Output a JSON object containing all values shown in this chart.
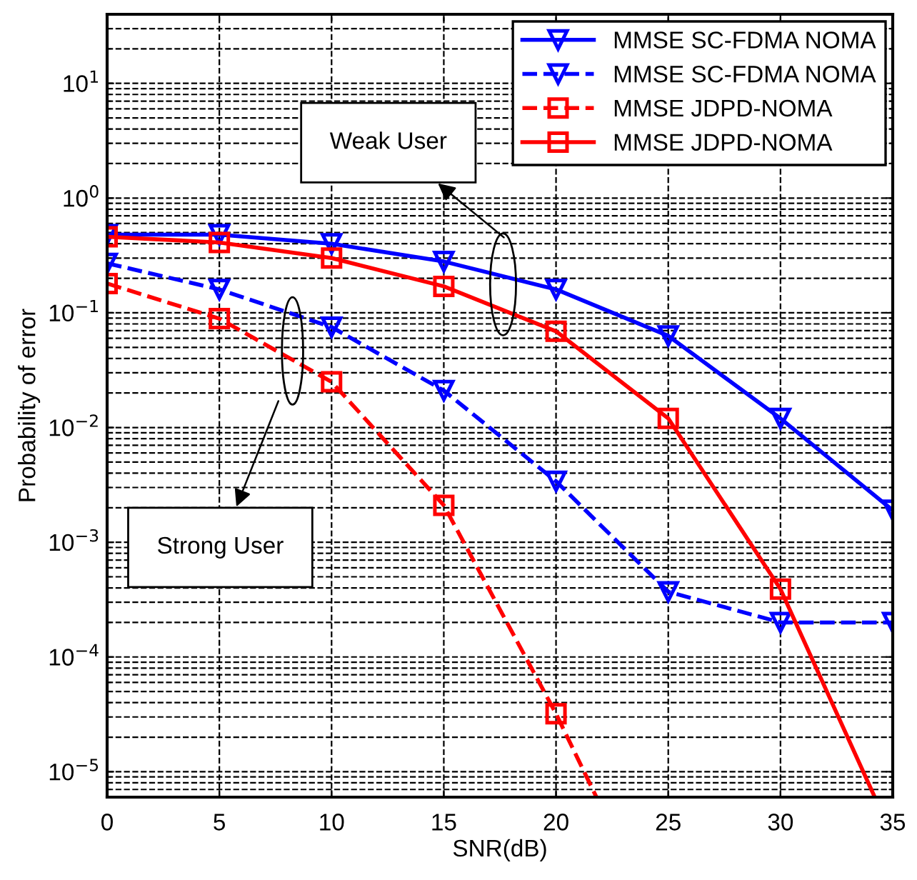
{
  "chart_data": {
    "type": "line",
    "xlabel": "SNR(dB)",
    "ylabel": "Probability of error",
    "log": "y",
    "grid": true,
    "legend": "top right",
    "xlim": [
      0,
      35
    ],
    "xticks": [
      0,
      5,
      10,
      15,
      20,
      25,
      30,
      35
    ],
    "ylim": [
      6e-06,
      40
    ],
    "yticks": [
      {
        "value": 1e-05,
        "label": "10$^{−5}$"
      },
      {
        "value": 0.0001,
        "label": "10$^{−4}$"
      },
      {
        "value": 0.001,
        "label": "10$^{−3}$"
      },
      {
        "value": 0.01,
        "label": "10$^{−2}$"
      },
      {
        "value": 0.1,
        "label": "10$^{−1}$"
      },
      {
        "value": 1,
        "label": "10$^{0}$"
      },
      {
        "value": 10,
        "label": "10$^{1}$"
      }
    ],
    "x": [
      0,
      5,
      10,
      15,
      20,
      25,
      30,
      35
    ],
    "series": [
      {
        "name": "MMSE SC-FDMA NOMA",
        "color": "#0000ff",
        "marker": "triangle",
        "line_style": "solid",
        "values": [
          0.48,
          0.48,
          0.4,
          0.28,
          0.16,
          0.063,
          0.012,
          0.0019
        ]
      },
      {
        "name": "MMSE SC-FDMA NOMA",
        "color": "#0000ff",
        "marker": "triangle",
        "line_style": "dashed",
        "values": [
          0.27,
          0.16,
          0.075,
          0.021,
          0.0034,
          0.00037,
          0.0002,
          0.0002
        ]
      },
      {
        "name": "MMSE JDPD-NOMA",
        "color": "#ff0000",
        "marker": "square",
        "line_style": "dashed",
        "x": [
          0,
          5,
          10,
          15,
          20,
          21.8
        ],
        "values": [
          0.18,
          0.089,
          0.025,
          0.0021,
          3.2e-05,
          6e-06
        ]
      },
      {
        "name": "MMSE JDPD-NOMA",
        "color": "#ff0000",
        "marker": "square",
        "line_style": "solid",
        "x": [
          0,
          5,
          10,
          15,
          20,
          25,
          30,
          34.2
        ],
        "values": [
          0.46,
          0.41,
          0.3,
          0.17,
          0.069,
          0.012,
          0.00039,
          6e-06
        ]
      }
    ],
    "annotations": [
      "Weak User",
      "Strong User"
    ]
  }
}
